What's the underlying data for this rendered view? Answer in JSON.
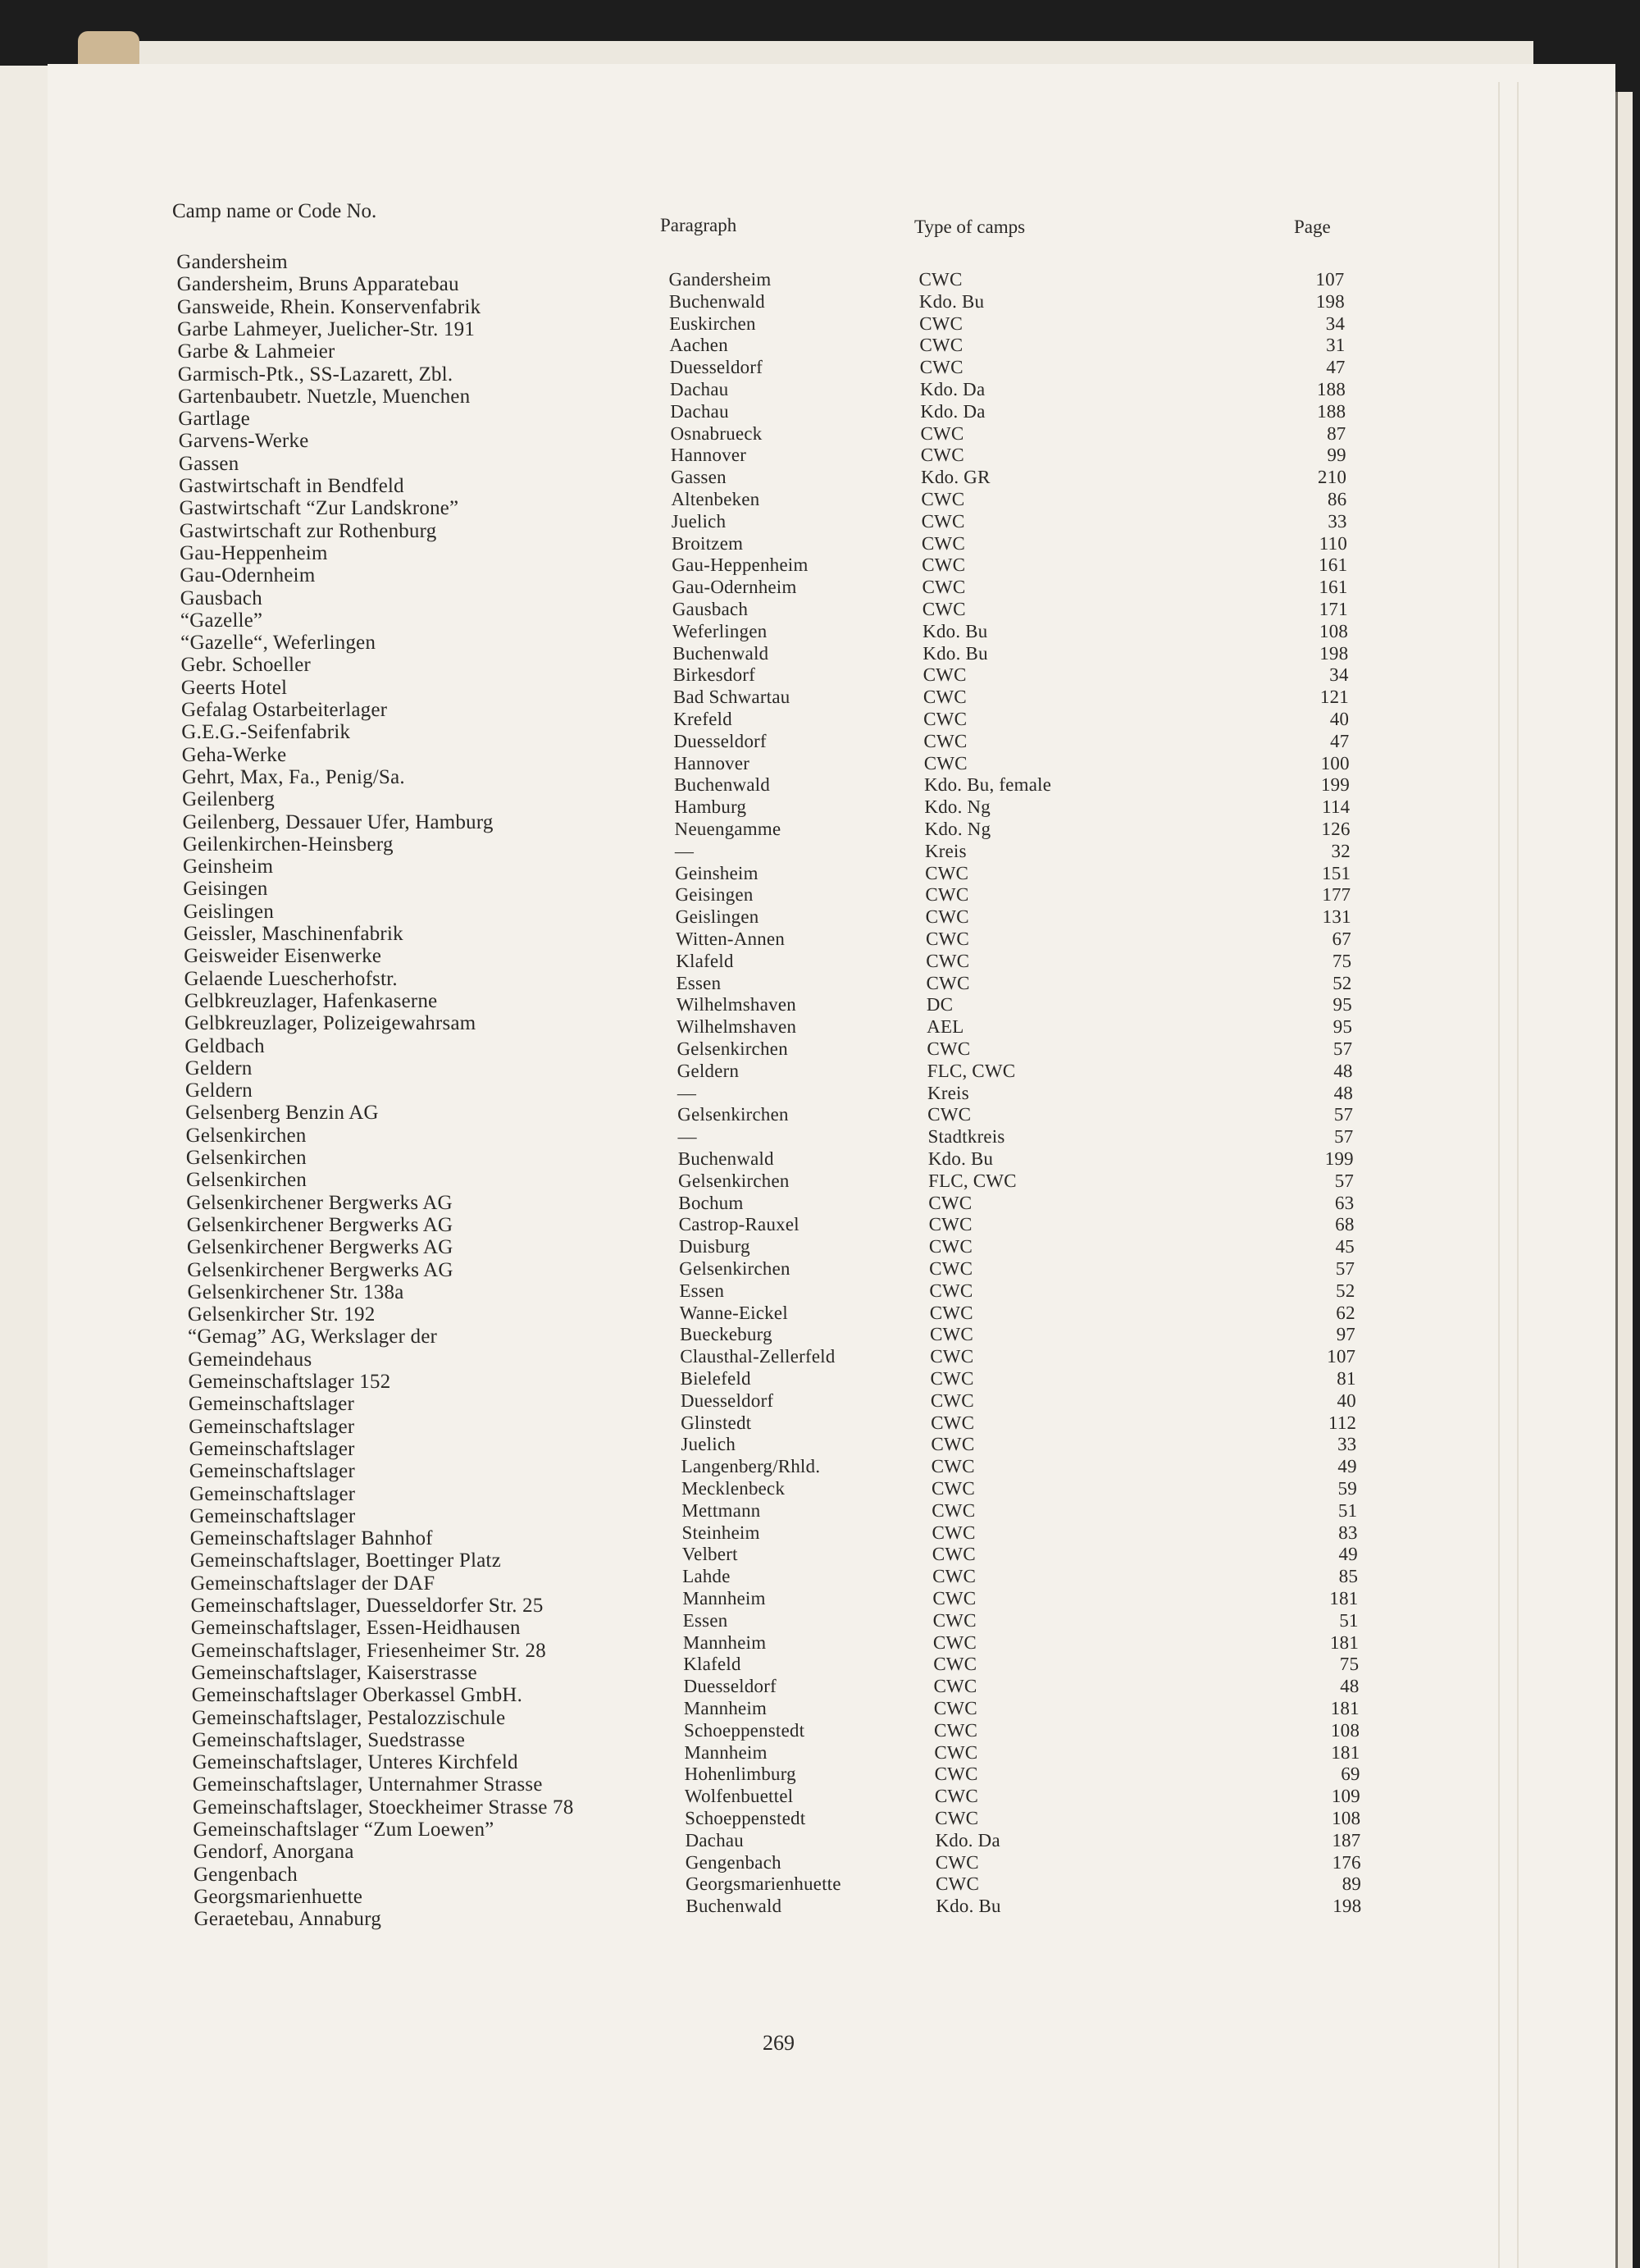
{
  "headers": {
    "camp": "Camp name or Code No.",
    "paragraph": "Paragraph",
    "type": "Type of camps",
    "page": "Page"
  },
  "camp_names": [
    "Gandersheim",
    "Gandersheim, Bruns Apparatebau",
    "Gansweide, Rhein. Konservenfabrik",
    "Garbe Lahmeyer, Juelicher-Str. 191",
    "Garbe & Lahmeier",
    "Garmisch-Ptk., SS-Lazarett, Zbl.",
    "Gartenbaubetr. Nuetzle, Muenchen",
    "Gartlage",
    "Garvens-Werke",
    "Gassen",
    "Gastwirtschaft in Bendfeld",
    "Gastwirtschaft “Zur Landskrone”",
    "Gastwirtschaft zur Rothenburg",
    "Gau-Heppenheim",
    "Gau-Odernheim",
    "Gausbach",
    "“Gazelle”",
    "“Gazelle“, Weferlingen",
    "Gebr. Schoeller",
    "Geerts Hotel",
    "Gefalag Ostarbeiterlager",
    "G.E.G.-Seifenfabrik",
    "Geha-Werke",
    "Gehrt, Max, Fa., Penig/Sa.",
    "Geilenberg",
    "Geilenberg, Dessauer Ufer, Hamburg",
    "Geilenkirchen-Heinsberg",
    "Geinsheim",
    "Geisingen",
    "Geislingen",
    "Geissler, Maschinenfabrik",
    "Geisweider Eisenwerke",
    "Gelaende Luescherhofstr.",
    "Gelbkreuzlager, Hafenkaserne",
    "Gelbkreuzlager, Polizeigewahrsam",
    "Geldbach",
    "Geldern",
    "Geldern",
    "Gelsenberg Benzin AG",
    "Gelsenkirchen",
    "Gelsenkirchen",
    "Gelsenkirchen",
    "Gelsenkirchener Bergwerks AG",
    "Gelsenkirchener Bergwerks AG",
    "Gelsenkirchener Bergwerks AG",
    "Gelsenkirchener Bergwerks AG",
    "Gelsenkirchener Str. 138a",
    "Gelsenkircher Str. 192",
    "“Gemag” AG, Werkslager der",
    "Gemeindehaus",
    "Gemeinschaftslager 152",
    "Gemeinschaftslager",
    "Gemeinschaftslager",
    "Gemeinschaftslager",
    "Gemeinschaftslager",
    "Gemeinschaftslager",
    "Gemeinschaftslager",
    "Gemeinschaftslager Bahnhof",
    "Gemeinschaftslager, Boettinger Platz",
    "Gemeinschaftslager der DAF",
    "Gemeinschaftslager, Duesseldorfer Str. 25",
    "Gemeinschaftslager, Essen-Heidhausen",
    "Gemeinschaftslager, Friesenheimer Str. 28",
    "Gemeinschaftslager, Kaiserstrasse",
    "Gemeinschaftslager Oberkassel GmbH.",
    "Gemeinschaftslager, Pestalozzischule",
    "Gemeinschaftslager, Suedstrasse",
    "Gemeinschaftslager, Unteres Kirchfeld",
    "Gemeinschaftslager, Unternahmer Strasse",
    "Gemeinschaftslager, Stoeckheimer Strasse 78",
    "Gemeinschaftslager “Zum Loewen”",
    "Gendorf, Anorgana",
    "Gengenbach",
    "Georgsmarienhuette",
    "Geraetebau, Annaburg"
  ],
  "entries": [
    {
      "paragraph": "Gandersheim",
      "type": "CWC",
      "page": "107"
    },
    {
      "paragraph": "Buchenwald",
      "type": "Kdo. Bu",
      "page": "198"
    },
    {
      "paragraph": "Euskirchen",
      "type": "CWC",
      "page": "34"
    },
    {
      "paragraph": "Aachen",
      "type": "CWC",
      "page": "31"
    },
    {
      "paragraph": "Duesseldorf",
      "type": "CWC",
      "page": "47"
    },
    {
      "paragraph": "Dachau",
      "type": "Kdo. Da",
      "page": "188"
    },
    {
      "paragraph": "Dachau",
      "type": "Kdo. Da",
      "page": "188"
    },
    {
      "paragraph": "Osnabrueck",
      "type": "CWC",
      "page": "87"
    },
    {
      "paragraph": "Hannover",
      "type": "CWC",
      "page": "99"
    },
    {
      "paragraph": "Gassen",
      "type": "Kdo. GR",
      "page": "210"
    },
    {
      "paragraph": "Altenbeken",
      "type": "CWC",
      "page": "86"
    },
    {
      "paragraph": "Juelich",
      "type": "CWC",
      "page": "33"
    },
    {
      "paragraph": "Broitzem",
      "type": "CWC",
      "page": "110"
    },
    {
      "paragraph": "Gau-Heppenheim",
      "type": "CWC",
      "page": "161"
    },
    {
      "paragraph": "Gau-Odernheim",
      "type": "CWC",
      "page": "161"
    },
    {
      "paragraph": "Gausbach",
      "type": "CWC",
      "page": "171"
    },
    {
      "paragraph": "Weferlingen",
      "type": "Kdo. Bu",
      "page": "108"
    },
    {
      "paragraph": "Buchenwald",
      "type": "Kdo. Bu",
      "page": "198"
    },
    {
      "paragraph": "Birkesdorf",
      "type": "CWC",
      "page": "34"
    },
    {
      "paragraph": "Bad Schwartau",
      "type": "CWC",
      "page": "121"
    },
    {
      "paragraph": "Krefeld",
      "type": "CWC",
      "page": "40"
    },
    {
      "paragraph": "Duesseldorf",
      "type": "CWC",
      "page": "47"
    },
    {
      "paragraph": "Hannover",
      "type": "CWC",
      "page": "100"
    },
    {
      "paragraph": "Buchenwald",
      "type": "Kdo. Bu, female",
      "page": "199"
    },
    {
      "paragraph": "Hamburg",
      "type": "Kdo. Ng",
      "page": "114"
    },
    {
      "paragraph": "Neuengamme",
      "type": "Kdo. Ng",
      "page": "126"
    },
    {
      "paragraph": "—",
      "type": "Kreis",
      "page": "32"
    },
    {
      "paragraph": "Geinsheim",
      "type": "CWC",
      "page": "151"
    },
    {
      "paragraph": "Geisingen",
      "type": "CWC",
      "page": "177"
    },
    {
      "paragraph": "Geislingen",
      "type": "CWC",
      "page": "131"
    },
    {
      "paragraph": "Witten-Annen",
      "type": "CWC",
      "page": "67"
    },
    {
      "paragraph": "Klafeld",
      "type": "CWC",
      "page": "75"
    },
    {
      "paragraph": "Essen",
      "type": "CWC",
      "page": "52"
    },
    {
      "paragraph": "Wilhelmshaven",
      "type": "DC",
      "page": "95"
    },
    {
      "paragraph": "Wilhelmshaven",
      "type": "AEL",
      "page": "95"
    },
    {
      "paragraph": "Gelsenkirchen",
      "type": "CWC",
      "page": "57"
    },
    {
      "paragraph": "Geldern",
      "type": "FLC, CWC",
      "page": "48"
    },
    {
      "paragraph": "—",
      "type": "Kreis",
      "page": "48"
    },
    {
      "paragraph": "Gelsenkirchen",
      "type": "CWC",
      "page": "57"
    },
    {
      "paragraph": "—",
      "type": "Stadtkreis",
      "page": "57"
    },
    {
      "paragraph": "Buchenwald",
      "type": "Kdo. Bu",
      "page": "199"
    },
    {
      "paragraph": "Gelsenkirchen",
      "type": "FLC, CWC",
      "page": "57"
    },
    {
      "paragraph": "Bochum",
      "type": "CWC",
      "page": "63"
    },
    {
      "paragraph": "Castrop-Rauxel",
      "type": "CWC",
      "page": "68"
    },
    {
      "paragraph": "Duisburg",
      "type": "CWC",
      "page": "45"
    },
    {
      "paragraph": "Gelsenkirchen",
      "type": "CWC",
      "page": "57"
    },
    {
      "paragraph": "Essen",
      "type": "CWC",
      "page": "52"
    },
    {
      "paragraph": "Wanne-Eickel",
      "type": "CWC",
      "page": "62"
    },
    {
      "paragraph": "Bueckeburg",
      "type": "CWC",
      "page": "97"
    },
    {
      "paragraph": "Clausthal-Zellerfeld",
      "type": "CWC",
      "page": "107"
    },
    {
      "paragraph": "Bielefeld",
      "type": "CWC",
      "page": "81"
    },
    {
      "paragraph": "Duesseldorf",
      "type": "CWC",
      "page": "40"
    },
    {
      "paragraph": "Glinstedt",
      "type": "CWC",
      "page": "112"
    },
    {
      "paragraph": "Juelich",
      "type": "CWC",
      "page": "33"
    },
    {
      "paragraph": "Langenberg/Rhld.",
      "type": "CWC",
      "page": "49"
    },
    {
      "paragraph": "Mecklenbeck",
      "type": "CWC",
      "page": "59"
    },
    {
      "paragraph": "Mettmann",
      "type": "CWC",
      "page": "51"
    },
    {
      "paragraph": "Steinheim",
      "type": "CWC",
      "page": "83"
    },
    {
      "paragraph": "Velbert",
      "type": "CWC",
      "page": "49"
    },
    {
      "paragraph": "Lahde",
      "type": "CWC",
      "page": "85"
    },
    {
      "paragraph": "Mannheim",
      "type": "CWC",
      "page": "181"
    },
    {
      "paragraph": "Essen",
      "type": "CWC",
      "page": "51"
    },
    {
      "paragraph": "Mannheim",
      "type": "CWC",
      "page": "181"
    },
    {
      "paragraph": "Klafeld",
      "type": "CWC",
      "page": "75"
    },
    {
      "paragraph": "Duesseldorf",
      "type": "CWC",
      "page": "48"
    },
    {
      "paragraph": "Mannheim",
      "type": "CWC",
      "page": "181"
    },
    {
      "paragraph": "Schoeppenstedt",
      "type": "CWC",
      "page": "108"
    },
    {
      "paragraph": "Mannheim",
      "type": "CWC",
      "page": "181"
    },
    {
      "paragraph": "Hohenlimburg",
      "type": "CWC",
      "page": "69"
    },
    {
      "paragraph": "Wolfenbuettel",
      "type": "CWC",
      "page": "109"
    },
    {
      "paragraph": "Schoeppenstedt",
      "type": "CWC",
      "page": "108"
    },
    {
      "paragraph": "Dachau",
      "type": "Kdo. Da",
      "page": "187"
    },
    {
      "paragraph": "Gengenbach",
      "type": "CWC",
      "page": "176"
    },
    {
      "paragraph": "Georgsmarienhuette",
      "type": "CWC",
      "page": "89"
    },
    {
      "paragraph": "Buchenwald",
      "type": "Kdo. Bu",
      "page": "198"
    }
  ],
  "page_number": "269",
  "colors": {
    "paper": "#f4f1eb",
    "ink": "#2a2826",
    "background": "#1d1d1d"
  }
}
